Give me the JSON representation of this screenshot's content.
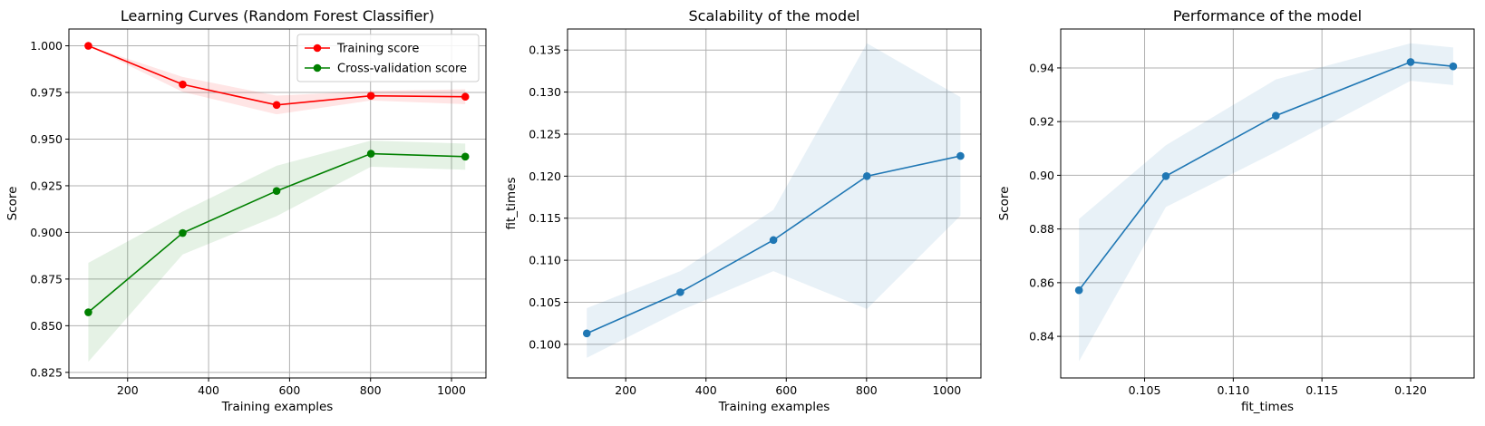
{
  "chart_data": [
    {
      "type": "line",
      "title": "Learning Curves (Random Forest Classifier)",
      "xlabel": "Training examples",
      "ylabel": "Score",
      "xlim": [
        55,
        1085
      ],
      "ylim": [
        0.822,
        1.009
      ],
      "xticks": [
        200,
        400,
        600,
        800,
        1000
      ],
      "xtick_labels": [
        "200",
        "400",
        "600",
        "800",
        "1000"
      ],
      "yticks": [
        0.825,
        0.85,
        0.875,
        0.9,
        0.925,
        0.95,
        0.975,
        1.0
      ],
      "ytick_labels": [
        "0.825",
        "0.850",
        "0.875",
        "0.900",
        "0.925",
        "0.950",
        "0.975",
        "1.000"
      ],
      "grid": true,
      "legend": "top-right",
      "series": [
        {
          "name": "Training score",
          "color": "#ff0000",
          "x": [
            103,
            336,
            568,
            801,
            1034
          ],
          "y": [
            1.0,
            0.9793,
            0.9683,
            0.9732,
            0.9727
          ],
          "band_low": [
            1.0,
            0.9753,
            0.9633,
            0.9707,
            0.9687
          ],
          "band_high": [
            1.0,
            0.9833,
            0.9733,
            0.9757,
            0.9767
          ]
        },
        {
          "name": "Cross-validation score",
          "color": "#008000",
          "x": [
            103,
            336,
            568,
            801,
            1034
          ],
          "y": [
            0.8572,
            0.8997,
            0.9222,
            0.9422,
            0.9406
          ],
          "band_low": [
            0.8307,
            0.8882,
            0.9087,
            0.9352,
            0.9336
          ],
          "band_high": [
            0.8837,
            0.9112,
            0.9357,
            0.9492,
            0.9476
          ]
        }
      ]
    },
    {
      "type": "line",
      "title": "Scalability of the model",
      "xlabel": "Training examples",
      "ylabel": "fit_times",
      "xlim": [
        55,
        1085
      ],
      "ylim": [
        0.096,
        0.1375
      ],
      "xticks": [
        200,
        400,
        600,
        800,
        1000
      ],
      "xtick_labels": [
        "200",
        "400",
        "600",
        "800",
        "1000"
      ],
      "yticks": [
        0.1,
        0.105,
        0.11,
        0.115,
        0.12,
        0.125,
        0.13,
        0.135
      ],
      "ytick_labels": [
        "0.100",
        "0.105",
        "0.110",
        "0.115",
        "0.120",
        "0.125",
        "0.130",
        "0.135"
      ],
      "grid": true,
      "series": [
        {
          "color": "#1f77b4",
          "x": [
            103,
            336,
            568,
            801,
            1034
          ],
          "y": [
            0.1013,
            0.1062,
            0.1124,
            0.12,
            0.1224
          ],
          "band_low": [
            0.0984,
            0.104,
            0.1087,
            0.1042,
            0.1153
          ],
          "band_high": [
            0.1043,
            0.1087,
            0.116,
            0.1358,
            0.1294
          ]
        }
      ]
    },
    {
      "type": "line",
      "title": "Performance of the model",
      "xlabel": "fit_times",
      "ylabel": "Score",
      "xlim": [
        0.10027,
        0.12358
      ],
      "ylim": [
        0.8245,
        0.9545
      ],
      "xticks": [
        0.105,
        0.11,
        0.115,
        0.12
      ],
      "xtick_labels": [
        "0.105",
        "0.110",
        "0.115",
        "0.120"
      ],
      "yticks": [
        0.84,
        0.86,
        0.88,
        0.9,
        0.92,
        0.94
      ],
      "ytick_labels": [
        "0.84",
        "0.86",
        "0.88",
        "0.90",
        "0.92",
        "0.94"
      ],
      "grid": true,
      "series": [
        {
          "color": "#1f77b4",
          "x": [
            0.1013,
            0.1062,
            0.1124,
            0.12,
            0.1224
          ],
          "y": [
            0.8572,
            0.8997,
            0.9222,
            0.9422,
            0.9406
          ],
          "band_low": [
            0.8307,
            0.8882,
            0.9087,
            0.9352,
            0.9336
          ],
          "band_high": [
            0.8837,
            0.9112,
            0.9357,
            0.9492,
            0.9476
          ]
        }
      ]
    }
  ]
}
